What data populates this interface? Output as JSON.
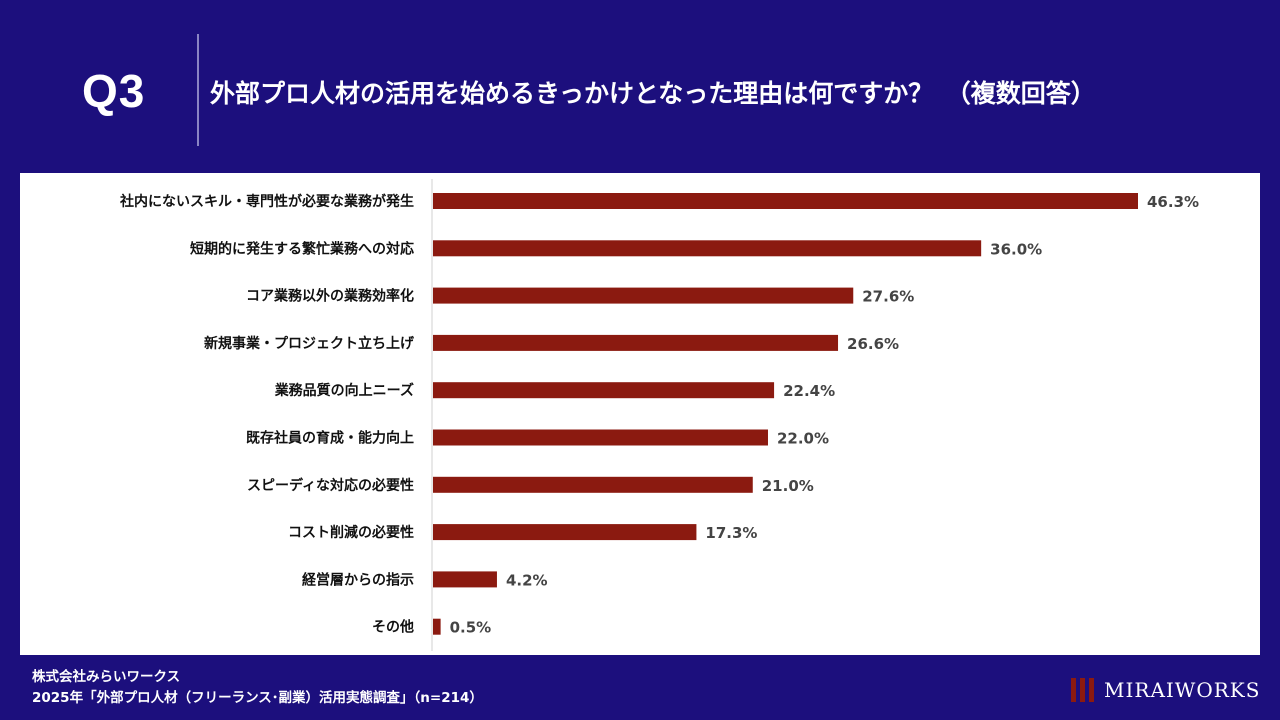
{
  "header": {
    "q_label": "Q3",
    "question": "外部プロ人材の活用を始めるきっかけとなった理由は何ですか？　（複数回答）"
  },
  "chart_data": {
    "type": "bar",
    "orientation": "horizontal",
    "categories": [
      "社内にないスキル・専門性が必要な業務が発生",
      "短期的に発生する繁忙業務への対応",
      "コア業務以外の業務効率化",
      "新規事業・プロジェクト立ち上げ",
      "業務品質の向上ニーズ",
      "既存社員の育成・能力向上",
      "スピーディな対応の必要性",
      "コスト削減の必要性",
      "経営層からの指示",
      "その他"
    ],
    "values": [
      46.3,
      36.0,
      27.6,
      26.6,
      22.4,
      22.0,
      21.0,
      17.3,
      4.2,
      0.5
    ],
    "value_labels": [
      "46.3%",
      "36.0%",
      "27.6%",
      "26.6%",
      "22.4%",
      "22.0%",
      "21.0%",
      "17.3%",
      "4.2%",
      "0.5%"
    ],
    "title": "",
    "xlabel": "",
    "ylabel": "",
    "grid": false,
    "bar_color": "#8b1a10"
  },
  "footer": {
    "company": "株式会社みらいワークス",
    "survey": "2025年「外部プロ人材（フリーランス･副業）活用実態調査」（n=214）"
  },
  "brand": {
    "name": "MIRAIWORKS",
    "logo_color": "#8b1a10"
  },
  "colors": {
    "background": "#1c0f7d",
    "panel": "#ffffff",
    "bar": "#8b1a10",
    "text_dark": "#111111"
  }
}
